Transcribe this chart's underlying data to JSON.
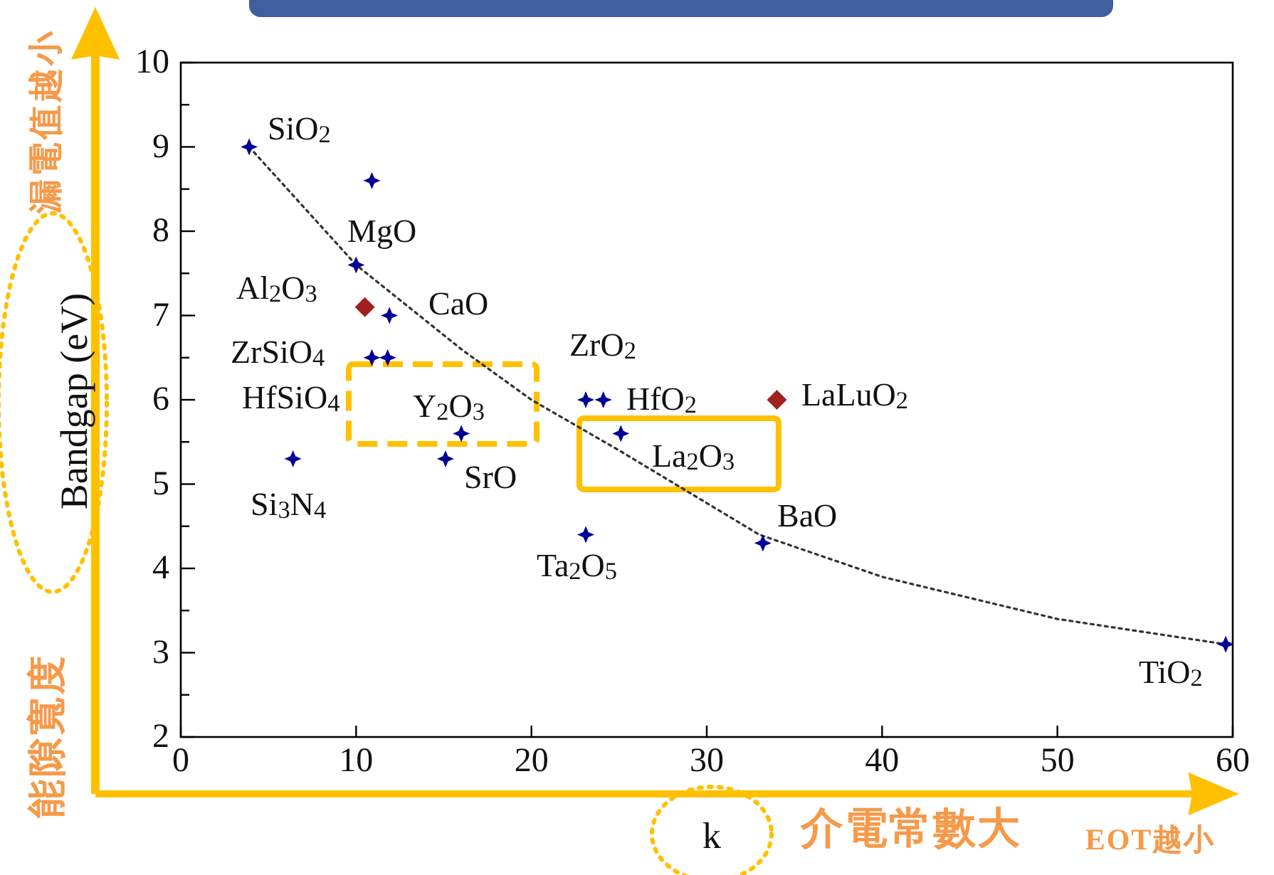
{
  "chart_data": {
    "type": "scatter",
    "xlabel": "k",
    "ylabel": "Bandgap (eV)",
    "xlim": [
      0,
      60
    ],
    "ylim": [
      2,
      10
    ],
    "xticks": [
      0,
      10,
      20,
      30,
      40,
      50,
      60
    ],
    "yticks": [
      2,
      {
        "value": 2.5,
        "label": null
      },
      3,
      {
        "value": 3.5,
        "label": null
      },
      4,
      {
        "value": 4.5,
        "label": null
      },
      5,
      {
        "value": 5.5,
        "label": null
      },
      6,
      {
        "value": 6.5,
        "label": null
      },
      7,
      {
        "value": 7.5,
        "label": null
      },
      8,
      {
        "value": 8.5,
        "label": null
      },
      9,
      {
        "value": 9.5,
        "label": null
      },
      10
    ],
    "grid": false,
    "series": [
      {
        "marker": "star",
        "color": "#000099",
        "x": [
          3.9,
          10.9,
          10.0,
          11.9,
          10.9,
          11.8,
          16.0,
          15.1,
          6.4,
          23.1,
          24.1,
          25.1,
          23.1,
          33.2,
          59.6
        ],
        "values": [
          9.0,
          8.6,
          7.6,
          7.0,
          6.5,
          6.5,
          5.6,
          5.3,
          5.3,
          6.0,
          6.0,
          5.6,
          4.4,
          4.3,
          3.1
        ]
      },
      {
        "marker": "diamond",
        "color": "#a02020",
        "x": [
          10.5,
          34.0
        ],
        "values": [
          7.1,
          6.0
        ]
      },
      {
        "type": "line",
        "marker": "none",
        "line_style": "dotted",
        "color": "#333333",
        "x": [
          3.9,
          10,
          16,
          20,
          25,
          33,
          40,
          50,
          59.6
        ],
        "values": [
          9.0,
          7.6,
          6.6,
          6.0,
          5.4,
          4.4,
          3.9,
          3.4,
          3.1
        ]
      }
    ],
    "annotations": [
      "漏電值越小",
      "能隙寬度",
      "介電常數大",
      "EOT越小",
      "SiO$_{2}$",
      "MgO",
      "Al$_{2}$O$_{3}$",
      "CaO",
      "ZrSiO$_{4}$",
      "HfSiO$_{4}$",
      "Y$_{2}$O$_{3}$",
      "SrO",
      "Si$_{3}$N$_{4}$",
      "ZrO$_{2}$",
      "HfO$_{2}$",
      "La$_{2}$O$_{3}$",
      "Ta$_{2}$O$_{5}$",
      "BaO",
      "TiO$_{2}$",
      "LaLuO$_{2}$"
    ]
  }
}
